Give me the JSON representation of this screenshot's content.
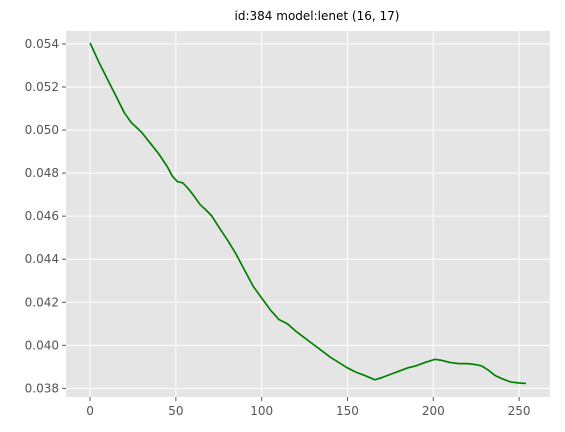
{
  "chart_data": {
    "type": "line",
    "title": "id:384 model:lenet (16, 17)",
    "xlabel": "",
    "ylabel": "",
    "xlim": [
      -14,
      268
    ],
    "ylim": [
      0.0376,
      0.0546
    ],
    "x_ticks": [
      0,
      50,
      100,
      150,
      200,
      250
    ],
    "y_ticks": [
      0.038,
      0.04,
      0.042,
      0.044,
      0.046,
      0.048,
      0.05,
      0.052,
      0.054
    ],
    "y_tick_labels": [
      "0.038",
      "0.040",
      "0.042",
      "0.044",
      "0.046",
      "0.048",
      "0.050",
      "0.052",
      "0.054"
    ],
    "x_tick_labels": [
      "0",
      "50",
      "100",
      "150",
      "200",
      "250"
    ],
    "grid": true,
    "background": "#e5e5e5",
    "series": [
      {
        "color": "#008000",
        "points": [
          [
            0,
            0.05405
          ],
          [
            5,
            0.05318
          ],
          [
            10,
            0.05238
          ],
          [
            15,
            0.0516
          ],
          [
            20,
            0.0508
          ],
          [
            24,
            0.05035
          ],
          [
            30,
            0.0499
          ],
          [
            35,
            0.0494
          ],
          [
            40,
            0.0489
          ],
          [
            45,
            0.0483
          ],
          [
            48,
            0.04785
          ],
          [
            51,
            0.0476
          ],
          [
            54,
            0.04755
          ],
          [
            57,
            0.0473
          ],
          [
            60,
            0.047
          ],
          [
            64,
            0.04655
          ],
          [
            68,
            0.04625
          ],
          [
            71,
            0.046
          ],
          [
            75,
            0.0455
          ],
          [
            80,
            0.0449
          ],
          [
            85,
            0.04425
          ],
          [
            90,
            0.0435
          ],
          [
            95,
            0.04275
          ],
          [
            100,
            0.0422
          ],
          [
            105,
            0.04165
          ],
          [
            110,
            0.0412
          ],
          [
            115,
            0.041
          ],
          [
            120,
            0.04065
          ],
          [
            125,
            0.04035
          ],
          [
            130,
            0.04005
          ],
          [
            135,
            0.03975
          ],
          [
            140,
            0.03945
          ],
          [
            145,
            0.0392
          ],
          [
            150,
            0.03895
          ],
          [
            155,
            0.03875
          ],
          [
            160,
            0.0386
          ],
          [
            166,
            0.0384
          ],
          [
            170,
            0.0385
          ],
          [
            175,
            0.03865
          ],
          [
            180,
            0.0388
          ],
          [
            185,
            0.03895
          ],
          [
            190,
            0.03905
          ],
          [
            195,
            0.0392
          ],
          [
            201,
            0.03935
          ],
          [
            205,
            0.0393
          ],
          [
            210,
            0.0392
          ],
          [
            215,
            0.03915
          ],
          [
            220,
            0.03915
          ],
          [
            225,
            0.0391
          ],
          [
            228,
            0.03905
          ],
          [
            232,
            0.03885
          ],
          [
            236,
            0.0386
          ],
          [
            240,
            0.03845
          ],
          [
            245,
            0.0383
          ],
          [
            250,
            0.03825
          ],
          [
            254,
            0.03823
          ]
        ]
      }
    ]
  }
}
